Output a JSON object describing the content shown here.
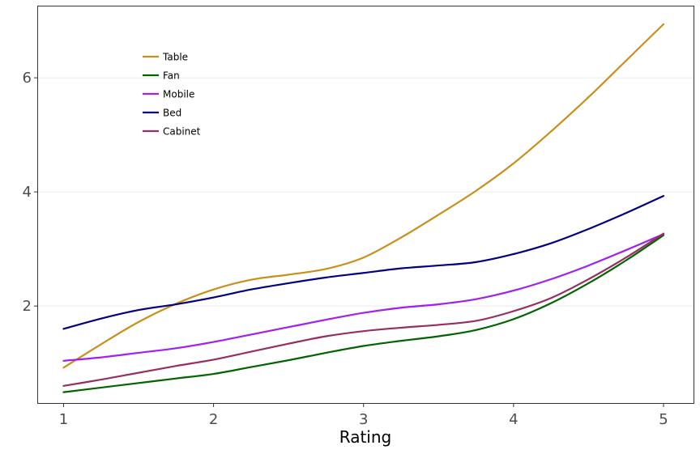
{
  "chart_data": {
    "type": "line",
    "title": "",
    "xlabel": "Rating",
    "ylabel": "",
    "xlim": [
      0.83,
      5.2
    ],
    "ylim": [
      0.3,
      7.25
    ],
    "x_ticks": [
      1,
      2,
      3,
      4,
      5
    ],
    "y_ticks": [
      2,
      4,
      6
    ],
    "grid": "horizontal major",
    "legend_position": "top-left",
    "x": [
      1,
      1.25,
      1.5,
      1.75,
      2,
      2.25,
      2.5,
      2.75,
      3,
      3.25,
      3.5,
      3.75,
      4,
      4.25,
      4.5,
      4.75,
      5
    ],
    "series": [
      {
        "name": "Table",
        "color": "#C8901A",
        "values": [
          0.92,
          1.33,
          1.72,
          2.04,
          2.29,
          2.46,
          2.55,
          2.65,
          2.85,
          3.2,
          3.6,
          4.02,
          4.5,
          5.06,
          5.66,
          6.3,
          6.94
        ]
      },
      {
        "name": "Fan",
        "color": "#006400",
        "values": [
          0.49,
          0.57,
          0.65,
          0.73,
          0.81,
          0.93,
          1.05,
          1.18,
          1.3,
          1.39,
          1.47,
          1.58,
          1.77,
          2.05,
          2.4,
          2.8,
          3.24
        ]
      },
      {
        "name": "Mobile",
        "color": "#A020F0",
        "values": [
          1.04,
          1.1,
          1.18,
          1.26,
          1.37,
          1.5,
          1.63,
          1.76,
          1.88,
          1.97,
          2.03,
          2.12,
          2.27,
          2.47,
          2.71,
          2.98,
          3.26
        ]
      },
      {
        "name": "Bed",
        "color": "#000080",
        "values": [
          1.6,
          1.78,
          1.93,
          2.03,
          2.15,
          2.29,
          2.4,
          2.5,
          2.58,
          2.66,
          2.71,
          2.77,
          2.91,
          3.1,
          3.35,
          3.63,
          3.93
        ]
      },
      {
        "name": "Cabinet",
        "color": "#962F5F",
        "values": [
          0.6,
          0.71,
          0.83,
          0.95,
          1.06,
          1.2,
          1.34,
          1.47,
          1.56,
          1.62,
          1.67,
          1.74,
          1.91,
          2.14,
          2.47,
          2.85,
          3.27
        ]
      }
    ]
  }
}
